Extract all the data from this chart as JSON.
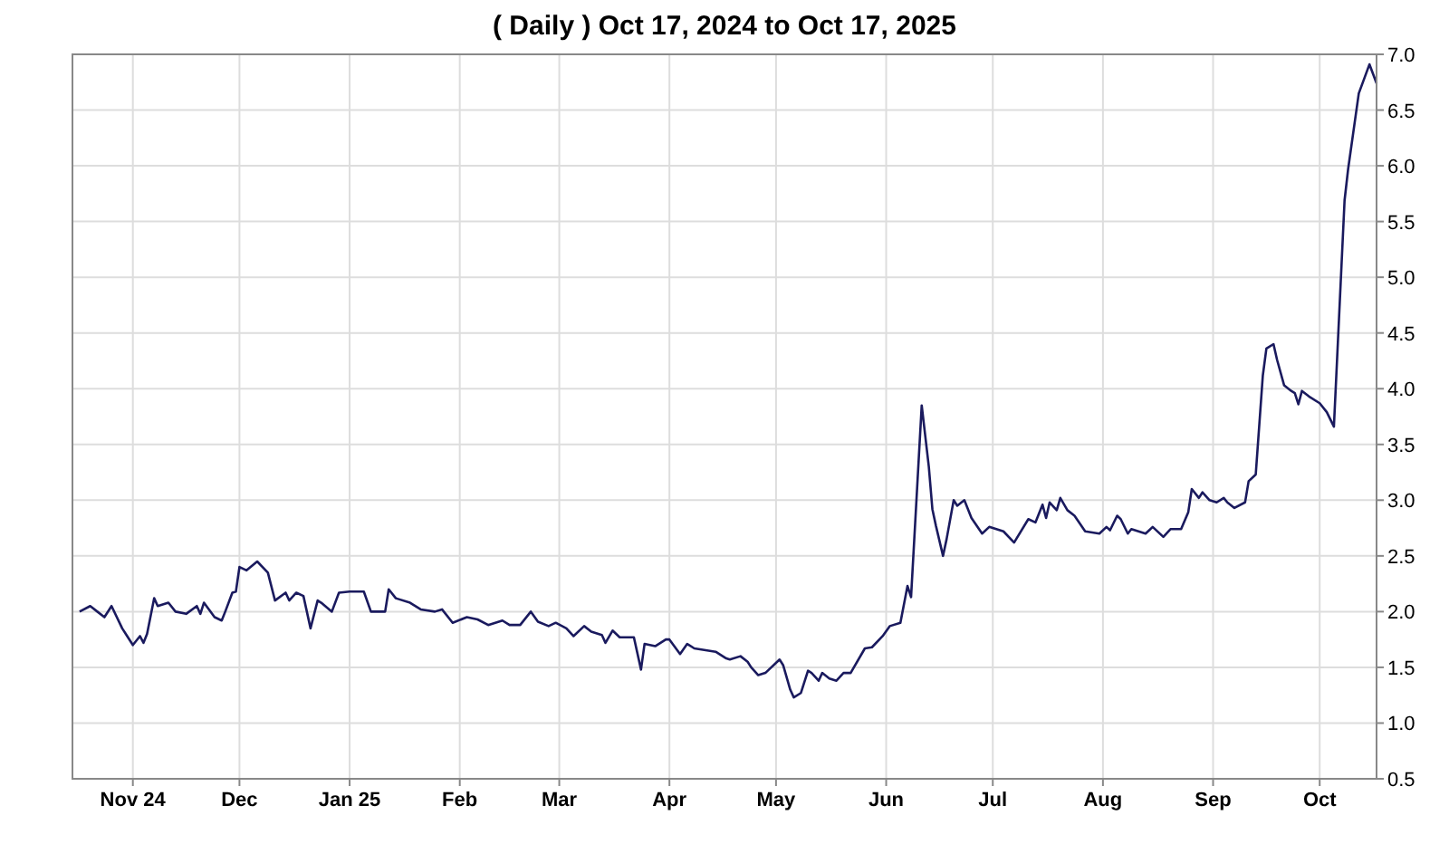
{
  "chart_data": {
    "type": "line",
    "title": "( Daily ) Oct 17, 2024 to Oct 17, 2025",
    "xlim": [
      "2024-10-15",
      "2025-10-17"
    ],
    "xticks": [
      {
        "value": "2024-11-01",
        "label": "Nov 24"
      },
      {
        "value": "2024-12-01",
        "label": "Dec"
      },
      {
        "value": "2025-01-01",
        "label": "Jan 25"
      },
      {
        "value": "2025-02-01",
        "label": "Feb"
      },
      {
        "value": "2025-03-01",
        "label": "Mar"
      },
      {
        "value": "2025-04-01",
        "label": "Apr"
      },
      {
        "value": "2025-05-01",
        "label": "May"
      },
      {
        "value": "2025-06-01",
        "label": "Jun"
      },
      {
        "value": "2025-07-01",
        "label": "Jul"
      },
      {
        "value": "2025-08-01",
        "label": "Aug"
      },
      {
        "value": "2025-09-01",
        "label": "Sep"
      },
      {
        "value": "2025-10-01",
        "label": "Oct"
      }
    ],
    "ylim": [
      0.5,
      7.0
    ],
    "yticks": [
      {
        "value": 0.5,
        "label": "0.5"
      },
      {
        "value": 1,
        "label": "1.0"
      },
      {
        "value": 1.5,
        "label": "1.5"
      },
      {
        "value": 2,
        "label": "2.0"
      },
      {
        "value": 2.5,
        "label": "2.5"
      },
      {
        "value": 3,
        "label": "3.0"
      },
      {
        "value": 3.5,
        "label": "3.5"
      },
      {
        "value": 4,
        "label": "4.0"
      },
      {
        "value": 4.5,
        "label": "4.5"
      },
      {
        "value": 5,
        "label": "5.0"
      },
      {
        "value": 5.5,
        "label": "5.5"
      },
      {
        "value": 6,
        "label": "6.0"
      },
      {
        "value": 6.5,
        "label": "6.5"
      },
      {
        "value": 7,
        "label": "7.0"
      }
    ],
    "grid": true,
    "marker": "none",
    "line_style": "solid",
    "series": [
      {
        "color": "#1a1a5e",
        "x": [
          "2024-10-17",
          "2024-10-20",
          "2024-10-22",
          "2024-10-24",
          "2024-10-26",
          "2024-10-29",
          "2024-10-30",
          "2024-11-01",
          "2024-11-03",
          "2024-11-04",
          "2024-11-05",
          "2024-11-07",
          "2024-11-08",
          "2024-11-11",
          "2024-11-13",
          "2024-11-16",
          "2024-11-19",
          "2024-11-20",
          "2024-11-21",
          "2024-11-24",
          "2024-11-26",
          "2024-11-27",
          "2024-11-29",
          "2024-11-30",
          "2024-12-01",
          "2024-12-03",
          "2024-12-06",
          "2024-12-09",
          "2024-12-11",
          "2024-12-14",
          "2024-12-15",
          "2024-12-17",
          "2024-12-19",
          "2024-12-21",
          "2024-12-23",
          "2024-12-24",
          "2024-12-27",
          "2024-12-29",
          "2025-01-01",
          "2025-01-05",
          "2025-01-07",
          "2025-01-11",
          "2025-01-12",
          "2025-01-14",
          "2025-01-18",
          "2025-01-21",
          "2025-01-25",
          "2025-01-27",
          "2025-01-30",
          "2025-02-03",
          "2025-02-06",
          "2025-02-09",
          "2025-02-13",
          "2025-02-15",
          "2025-02-18",
          "2025-02-21",
          "2025-02-23",
          "2025-02-26",
          "2025-02-28",
          "2025-03-03",
          "2025-03-05",
          "2025-03-08",
          "2025-03-10",
          "2025-03-13",
          "2025-03-14",
          "2025-03-16",
          "2025-03-18",
          "2025-03-22",
          "2025-03-24",
          "2025-03-25",
          "2025-03-28",
          "2025-03-31",
          "2025-04-01",
          "2025-04-04",
          "2025-04-06",
          "2025-04-08",
          "2025-04-14",
          "2025-04-17",
          "2025-04-18",
          "2025-04-21",
          "2025-04-23",
          "2025-04-24",
          "2025-04-26",
          "2025-04-28",
          "2025-05-02",
          "2025-05-03",
          "2025-05-05",
          "2025-05-06",
          "2025-05-08",
          "2025-05-10",
          "2025-05-11",
          "2025-05-13",
          "2025-05-14",
          "2025-05-16",
          "2025-05-18",
          "2025-05-20",
          "2025-05-22",
          "2025-05-26",
          "2025-05-28",
          "2025-05-31",
          "2025-06-02",
          "2025-06-05",
          "2025-06-07",
          "2025-06-08",
          "2025-06-11",
          "2025-06-13",
          "2025-06-14",
          "2025-06-15",
          "2025-06-17",
          "2025-06-18",
          "2025-06-20",
          "2025-06-21",
          "2025-06-23",
          "2025-06-25",
          "2025-06-28",
          "2025-06-30",
          "2025-07-04",
          "2025-07-07",
          "2025-07-11",
          "2025-07-13",
          "2025-07-15",
          "2025-07-16",
          "2025-07-17",
          "2025-07-19",
          "2025-07-20",
          "2025-07-22",
          "2025-07-24",
          "2025-07-27",
          "2025-07-31",
          "2025-08-02",
          "2025-08-03",
          "2025-08-05",
          "2025-08-06",
          "2025-08-08",
          "2025-08-09",
          "2025-08-13",
          "2025-08-15",
          "2025-08-18",
          "2025-08-20",
          "2025-08-23",
          "2025-08-25",
          "2025-08-26",
          "2025-08-28",
          "2025-08-29",
          "2025-08-31",
          "2025-09-02",
          "2025-09-04",
          "2025-09-05",
          "2025-09-07",
          "2025-09-10",
          "2025-09-11",
          "2025-09-13",
          "2025-09-15",
          "2025-09-16",
          "2025-09-18",
          "2025-09-19",
          "2025-09-21",
          "2025-09-23",
          "2025-09-24",
          "2025-09-25",
          "2025-09-26",
          "2025-09-28",
          "2025-10-01",
          "2025-10-03",
          "2025-10-05",
          "2025-10-08",
          "2025-10-09",
          "2025-10-12",
          "2025-10-15",
          "2025-10-17"
        ],
        "values": [
          2.0,
          2.05,
          2.0,
          1.95,
          2.05,
          1.85,
          1.8,
          1.7,
          1.78,
          1.72,
          1.8,
          2.12,
          2.05,
          2.08,
          2.0,
          1.98,
          2.05,
          1.98,
          2.08,
          1.95,
          1.92,
          2.0,
          2.17,
          2.18,
          2.4,
          2.37,
          2.45,
          2.35,
          2.1,
          2.17,
          2.1,
          2.17,
          2.14,
          1.85,
          2.1,
          2.08,
          2.0,
          2.17,
          2.18,
          2.18,
          2.0,
          2.0,
          2.2,
          2.12,
          2.08,
          2.02,
          2.0,
          2.02,
          1.9,
          1.95,
          1.93,
          1.88,
          1.92,
          1.88,
          1.88,
          2.0,
          1.91,
          1.87,
          1.9,
          1.85,
          1.78,
          1.87,
          1.82,
          1.79,
          1.72,
          1.83,
          1.77,
          1.77,
          1.48,
          1.71,
          1.69,
          1.75,
          1.75,
          1.62,
          1.71,
          1.67,
          1.64,
          1.58,
          1.57,
          1.6,
          1.55,
          1.5,
          1.43,
          1.45,
          1.57,
          1.52,
          1.3,
          1.23,
          1.27,
          1.47,
          1.45,
          1.38,
          1.45,
          1.4,
          1.38,
          1.45,
          1.45,
          1.67,
          1.68,
          1.78,
          1.87,
          1.9,
          2.23,
          2.13,
          3.85,
          3.3,
          2.92,
          2.77,
          2.5,
          2.65,
          3.0,
          2.95,
          3.0,
          2.84,
          2.7,
          2.76,
          2.72,
          2.62,
          2.83,
          2.8,
          2.96,
          2.84,
          2.98,
          2.91,
          3.02,
          2.91,
          2.86,
          2.72,
          2.7,
          2.76,
          2.73,
          2.86,
          2.83,
          2.7,
          2.74,
          2.7,
          2.76,
          2.67,
          2.74,
          2.74,
          2.89,
          3.1,
          3.02,
          3.07,
          3.0,
          2.98,
          3.02,
          2.98,
          2.93,
          2.98,
          3.17,
          3.23,
          4.12,
          4.36,
          4.4,
          4.26,
          4.03,
          3.98,
          3.96,
          3.86,
          3.98,
          3.93,
          3.87,
          3.79,
          3.66,
          5.69,
          5.97,
          6.65,
          6.91,
          6.74
        ]
      }
    ]
  }
}
